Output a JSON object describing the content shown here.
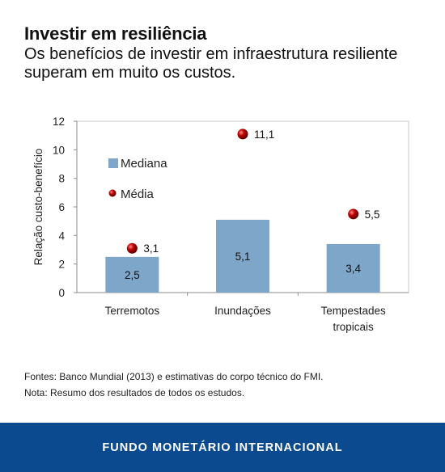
{
  "header": {
    "title": "Investir em resiliência",
    "subtitle": "Os benefícios de investir em infraestrutura resiliente superam em muito os custos."
  },
  "chart_data": {
    "type": "bar",
    "categories": [
      [
        "Terremotos"
      ],
      [
        "Inundações"
      ],
      [
        "Tempestades",
        "tropicais"
      ]
    ],
    "series": [
      {
        "name": "Mediana",
        "type": "bar",
        "values": [
          2.5,
          5.1,
          3.4
        ],
        "labels": [
          "2,5",
          "5,1",
          "3,4"
        ],
        "color": "#7ea6c9"
      },
      {
        "name": "Média",
        "type": "scatter",
        "values": [
          3.1,
          11.1,
          5.5
        ],
        "labels": [
          "3,1",
          "11,1",
          "5,5"
        ],
        "color": "#c00000"
      }
    ],
    "xlabel": "",
    "ylabel": "Relação custo-benefício",
    "ylim": [
      0,
      12
    ],
    "yticks": [
      "0",
      "2",
      "4",
      "6",
      "8",
      "10",
      "12"
    ],
    "grid": false,
    "legend": "top-left"
  },
  "notes": {
    "sources": "Fontes: Banco Mundial (2013) e estimativas do corpo técnico do FMI.",
    "note": "Nota: Resumo dos resultados de todos os estudos."
  },
  "footer": {
    "org": "FUNDO MONETÁRIO INTERNACIONAL",
    "color": "#0b4a8f"
  }
}
